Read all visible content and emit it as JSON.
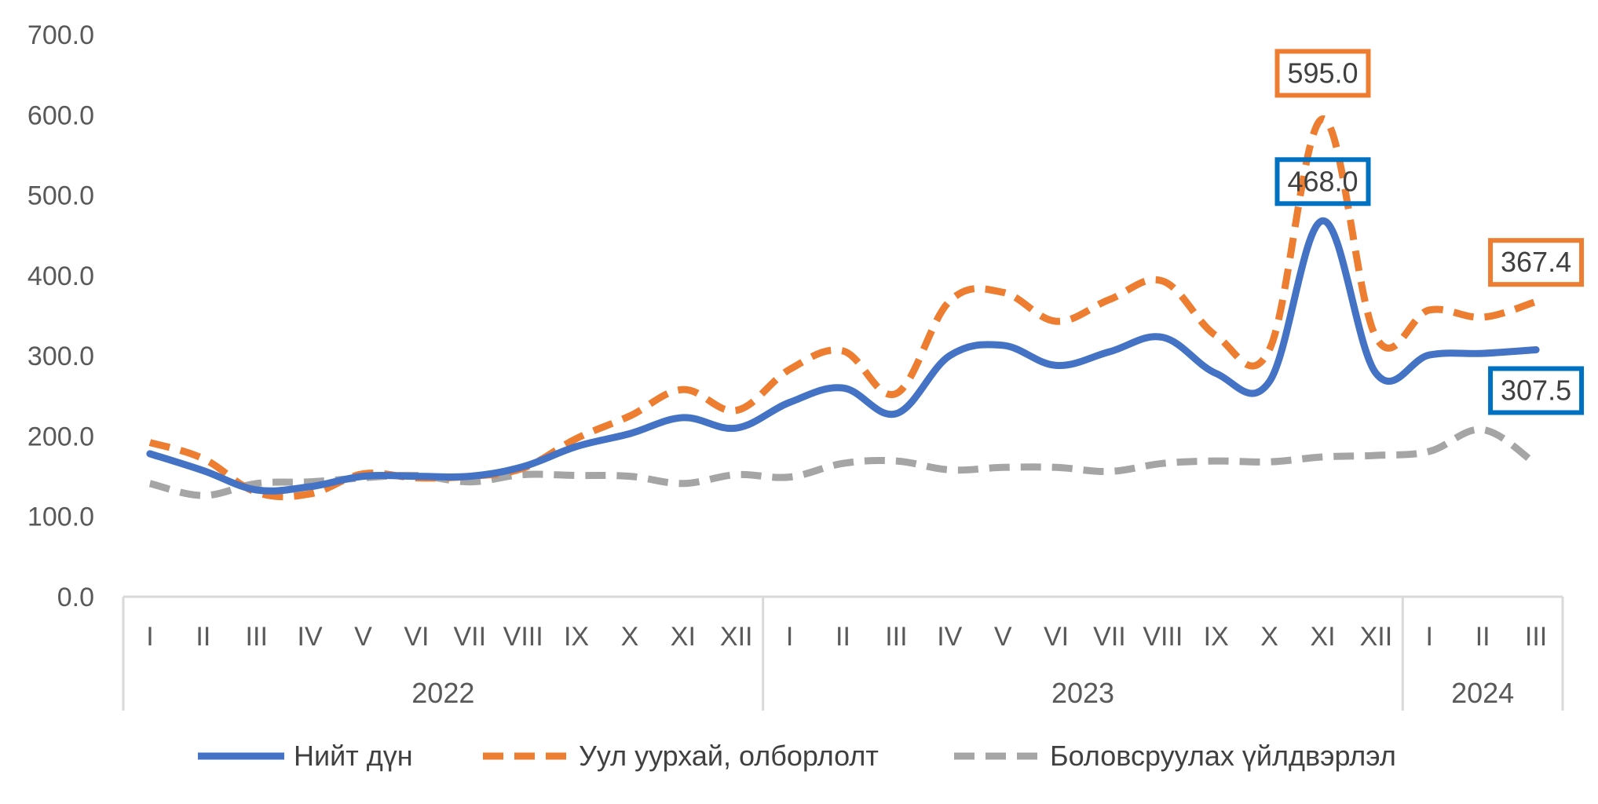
{
  "chart_data": {
    "type": "line",
    "title": "",
    "xlabel": "",
    "ylabel": "",
    "ylim": [
      0,
      700
    ],
    "yticks": [
      "0.0",
      "100.0",
      "200.0",
      "300.0",
      "400.0",
      "500.0",
      "600.0",
      "700.0"
    ],
    "grid": false,
    "legend_position": "bottom",
    "categories": [
      "I",
      "II",
      "III",
      "IV",
      "V",
      "VI",
      "VII",
      "VIII",
      "IX",
      "X",
      "XI",
      "XII",
      "I",
      "II",
      "III",
      "IV",
      "V",
      "VI",
      "VII",
      "VIII",
      "IX",
      "X",
      "XI",
      "XII",
      "I",
      "II",
      "III"
    ],
    "year_groups": [
      {
        "label": "2022",
        "count": 12
      },
      {
        "label": "2023",
        "count": 12
      },
      {
        "label": "2024",
        "count": 3
      }
    ],
    "series": [
      {
        "name": "Нийт дүн",
        "color": "#4472C4",
        "style": "solid",
        "values": [
          178,
          157,
          133,
          137,
          150,
          150,
          150,
          162,
          187,
          203,
          223,
          210,
          242,
          260,
          228,
          300,
          313,
          288,
          305,
          323,
          278,
          268,
          468,
          278,
          301,
          303,
          307.5
        ]
      },
      {
        "name": "Уул уурхай, олборлолт",
        "color": "#ED7D31",
        "style": "dashed",
        "values": [
          192,
          172,
          130,
          128,
          153,
          148,
          150,
          160,
          197,
          225,
          258,
          232,
          283,
          306,
          253,
          368,
          379,
          343,
          370,
          393,
          325,
          308,
          595,
          323,
          357,
          348,
          367.4
        ]
      },
      {
        "name": "Боловсруулах үйлдвэрлэл",
        "color": "#A5A5A5",
        "style": "dashed",
        "values": [
          141,
          126,
          141,
          143,
          148,
          151,
          143,
          152,
          151,
          150,
          141,
          152,
          149,
          166,
          169,
          158,
          161,
          161,
          156,
          166,
          169,
          168,
          174,
          176,
          181,
          208,
          165
        ]
      }
    ],
    "data_labels": [
      {
        "series": 1,
        "index": 22,
        "text": "595.0",
        "color": "#ED7D31"
      },
      {
        "series": 0,
        "index": 22,
        "text": "468.0",
        "color": "#0070C0"
      },
      {
        "series": 1,
        "index": 26,
        "text": "367.4",
        "color": "#ED7D31"
      },
      {
        "series": 0,
        "index": 26,
        "text": "307.5",
        "color": "#0070C0"
      }
    ]
  }
}
